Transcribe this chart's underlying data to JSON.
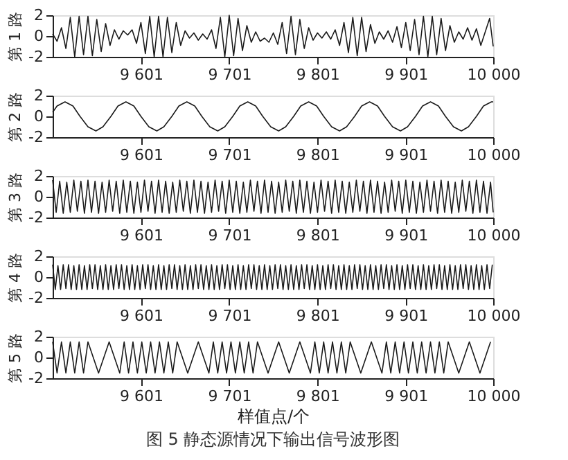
{
  "chart_data": [
    {
      "type": "line",
      "ylabel": "第 1 路",
      "color": "#1a1a1a",
      "xlim": [
        9501,
        10000
      ],
      "ylim": [
        -2,
        2
      ],
      "yticks": [
        -2,
        0,
        2
      ],
      "xticks": [
        {
          "value": 9601,
          "label": "9 601"
        },
        {
          "value": 9701,
          "label": "9 701"
        },
        {
          "value": 9801,
          "label": "9 801"
        },
        {
          "value": 9901,
          "label": "9 901"
        },
        {
          "value": 10000,
          "label": "10 000"
        }
      ],
      "x": [
        9501,
        9506,
        9511,
        9516,
        9521,
        9526,
        9531,
        9536,
        9541,
        9546,
        9551,
        9556,
        9561,
        9566,
        9571,
        9576,
        9581,
        9586,
        9591,
        9596,
        9601,
        9606,
        9611,
        9616,
        9621,
        9626,
        9631,
        9636,
        9641,
        9646,
        9651,
        9656,
        9661,
        9666,
        9671,
        9676,
        9681,
        9686,
        9691,
        9696,
        9701,
        9706,
        9711,
        9716,
        9721,
        9726,
        9731,
        9736,
        9741,
        9746,
        9751,
        9756,
        9761,
        9766,
        9771,
        9776,
        9781,
        9786,
        9791,
        9796,
        9801,
        9806,
        9811,
        9816,
        9821,
        9826,
        9831,
        9836,
        9841,
        9846,
        9851,
        9856,
        9861,
        9866,
        9871,
        9876,
        9881,
        9886,
        9891,
        9896,
        9901,
        9906,
        9911,
        9916,
        9921,
        9926,
        9931,
        9936,
        9941,
        9946,
        9951,
        9956,
        9961,
        9966,
        9971,
        9976,
        9981,
        9986,
        9991,
        9996,
        10000
      ],
      "values": [
        0.2,
        -0.5,
        0.8,
        -1.2,
        1.8,
        -2.0,
        1.9,
        -1.8,
        1.9,
        -1.9,
        1.6,
        -1.5,
        1.2,
        -0.9,
        0.6,
        -0.3,
        0.5,
        0.1,
        0.6,
        -0.7,
        1.3,
        -1.7,
        1.9,
        -2.0,
        1.9,
        -2.0,
        1.8,
        -1.6,
        1.3,
        -0.9,
        0.5,
        -0.2,
        0.3,
        -0.4,
        0.2,
        -0.3,
        0.6,
        -1.2,
        1.8,
        -2.0,
        2.0,
        -1.9,
        1.7,
        -1.4,
        1.0,
        -0.6,
        0.4,
        -0.5,
        -0.2,
        -0.6,
        0.3,
        -0.8,
        1.3,
        -1.7,
        1.9,
        -1.8,
        1.6,
        -1.2,
        0.8,
        -0.4,
        0.3,
        -0.2,
        0.4,
        -0.3,
        0.6,
        -0.9,
        1.3,
        -1.6,
        1.8,
        -1.9,
        1.8,
        -1.5,
        1.1,
        -0.7,
        0.4,
        -0.3,
        0.5,
        -0.6,
        0.9,
        -1.1,
        1.3,
        -1.4,
        1.6,
        -1.8,
        1.9,
        -2.0,
        1.9,
        -1.8,
        1.7,
        -1.4,
        1.0,
        -0.6,
        0.4,
        -0.3,
        0.8,
        -0.4,
        0.7,
        -0.9,
        0.4,
        1.7,
        -1.0
      ]
    },
    {
      "type": "line",
      "ylabel": "第 2 路",
      "color": "#1a1a1a",
      "xlim": [
        9501,
        10000
      ],
      "ylim": [
        -2,
        2
      ],
      "yticks": [
        -2,
        0,
        2
      ],
      "xticks": [
        {
          "value": 9601,
          "label": "9 601"
        },
        {
          "value": 9701,
          "label": "9 701"
        },
        {
          "value": 9801,
          "label": "9 801"
        },
        {
          "value": 9901,
          "label": "9 901"
        },
        {
          "value": 10000,
          "label": "10 000"
        }
      ],
      "x": [
        9501,
        9506,
        9515,
        9524,
        9532,
        9541,
        9550,
        9558,
        9567,
        9575,
        9584,
        9593,
        9601,
        9610,
        9619,
        9627,
        9636,
        9644,
        9653,
        9662,
        9670,
        9679,
        9688,
        9696,
        9705,
        9713,
        9722,
        9731,
        9739,
        9748,
        9757,
        9765,
        9774,
        9782,
        9791,
        9800,
        9808,
        9817,
        9826,
        9834,
        9843,
        9851,
        9860,
        9869,
        9877,
        9886,
        9895,
        9903,
        9912,
        9920,
        9929,
        9938,
        9946,
        9955,
        9964,
        9972,
        9981,
        9989,
        9998,
        10000
      ],
      "values": [
        0.4,
        1.0,
        1.4,
        1.0,
        0,
        -1.0,
        -1.4,
        -1.0,
        0,
        1.0,
        1.4,
        1.0,
        0,
        -1.0,
        -1.4,
        -1.0,
        0,
        1.0,
        1.4,
        1.0,
        0,
        -1.0,
        -1.4,
        -1.0,
        0,
        1.0,
        1.4,
        1.0,
        0,
        -1.0,
        -1.4,
        -1.0,
        0,
        1.0,
        1.4,
        1.0,
        0,
        -1.0,
        -1.4,
        -1.0,
        0,
        1.0,
        1.4,
        1.0,
        0,
        -1.0,
        -1.4,
        -1.0,
        0,
        1.0,
        1.4,
        1.0,
        0,
        -1.0,
        -1.4,
        -1.0,
        0,
        1.0,
        1.4,
        1.4
      ]
    },
    {
      "type": "line",
      "ylabel": "第 3 路",
      "color": "#1a1a1a",
      "xlim": [
        9501,
        10000
      ],
      "ylim": [
        -2,
        2
      ],
      "yticks": [
        -2,
        0,
        2
      ],
      "xticks": [
        {
          "value": 9601,
          "label": "9 601"
        },
        {
          "value": 9701,
          "label": "9 701"
        },
        {
          "value": 9801,
          "label": "9 801"
        },
        {
          "value": 9901,
          "label": "9 901"
        },
        {
          "value": 10000,
          "label": "10 000"
        }
      ],
      "x": [
        9501,
        9505,
        9509,
        9513,
        9517,
        9521,
        9525,
        9529,
        9533,
        9537,
        9541,
        9545,
        9549,
        9553,
        9557,
        9561,
        9565,
        9569,
        9573,
        9577,
        9581,
        9585,
        9589,
        9593,
        9597,
        9601,
        9605,
        9609,
        9613,
        9617,
        9621,
        9625,
        9629,
        9633,
        9637,
        9641,
        9645,
        9649,
        9653,
        9657,
        9661,
        9665,
        9669,
        9673,
        9677,
        9681,
        9685,
        9689,
        9693,
        9697,
        9701,
        9705,
        9709,
        9713,
        9717,
        9721,
        9725,
        9729,
        9733,
        9737,
        9741,
        9745,
        9749,
        9753,
        9757,
        9761,
        9765,
        9769,
        9773,
        9777,
        9781,
        9785,
        9789,
        9793,
        9797,
        9801,
        9805,
        9809,
        9813,
        9817,
        9821,
        9825,
        9829,
        9833,
        9837,
        9841,
        9845,
        9849,
        9853,
        9857,
        9861,
        9865,
        9869,
        9873,
        9877,
        9881,
        9885,
        9889,
        9893,
        9897,
        9901,
        9905,
        9909,
        9913,
        9917,
        9921,
        9925,
        9929,
        9933,
        9937,
        9941,
        9945,
        9949,
        9953,
        9957,
        9961,
        9965,
        9969,
        9973,
        9977,
        9981,
        9985,
        9989,
        9993,
        9997,
        10000
      ],
      "values": [
        1.6,
        -1.5,
        1.5,
        -1.6,
        1.4,
        -1.5,
        1.6,
        -1.4,
        1.5,
        -1.6,
        1.6,
        -1.5,
        1.5,
        -1.6,
        1.4,
        -1.5,
        1.6,
        -1.4,
        1.5,
        -1.6,
        1.6,
        -1.5,
        1.5,
        -1.6,
        1.4,
        -1.5,
        1.6,
        -1.4,
        1.5,
        -1.6,
        1.6,
        -1.5,
        1.5,
        -1.6,
        1.4,
        -1.5,
        1.6,
        -1.4,
        1.5,
        -1.6,
        1.6,
        -1.5,
        1.5,
        -1.6,
        1.4,
        -1.5,
        1.6,
        -1.4,
        1.5,
        -1.6,
        1.6,
        -1.5,
        1.5,
        -1.6,
        1.4,
        -1.5,
        1.6,
        -1.4,
        1.5,
        -1.6,
        1.6,
        -1.5,
        1.5,
        -1.6,
        1.4,
        -1.5,
        1.6,
        -1.4,
        1.5,
        -1.6,
        1.6,
        -1.5,
        1.5,
        -1.6,
        1.4,
        -1.5,
        1.6,
        -1.4,
        1.5,
        -1.6,
        1.6,
        -1.5,
        1.5,
        -1.6,
        1.4,
        -1.5,
        1.6,
        -1.4,
        1.5,
        -1.6,
        1.6,
        -1.5,
        1.5,
        -1.6,
        1.4,
        -1.5,
        1.6,
        -1.4,
        1.5,
        -1.6,
        1.6,
        -1.5,
        1.5,
        -1.6,
        1.4,
        -1.5,
        1.6,
        -1.4,
        1.5,
        -1.6,
        1.6,
        -1.5,
        1.5,
        -1.6,
        1.4,
        -1.5,
        1.6,
        -1.4,
        1.5,
        -1.6,
        1.6,
        -1.5,
        1.5,
        -1.6,
        1.4,
        -1.5
      ]
    },
    {
      "type": "line",
      "ylabel": "第 4 路",
      "color": "#1a1a1a",
      "xlim": [
        9501,
        10000
      ],
      "ylim": [
        -2,
        2
      ],
      "yticks": [
        -2,
        0,
        2
      ],
      "xticks": [
        {
          "value": 9601,
          "label": "9 601"
        },
        {
          "value": 9701,
          "label": "9 701"
        },
        {
          "value": 9801,
          "label": "9 801"
        },
        {
          "value": 9901,
          "label": "9 901"
        },
        {
          "value": 10000,
          "label": "10 000"
        }
      ],
      "x": [
        9501,
        9504,
        9507,
        9510,
        9513,
        9516,
        9519,
        9522,
        9525,
        9528,
        9531,
        9534,
        9537,
        9540,
        9543,
        9546,
        9549,
        9552,
        9555,
        9558,
        9561,
        9564,
        9567,
        9570,
        9573,
        9576,
        9579,
        9582,
        9585,
        9588,
        9591,
        9594,
        9597,
        9600,
        9603,
        9606,
        9609,
        9612,
        9615,
        9618,
        9621,
        9624,
        9627,
        9630,
        9633,
        9636,
        9639,
        9642,
        9645,
        9648,
        9651,
        9654,
        9657,
        9660,
        9663,
        9666,
        9669,
        9672,
        9675,
        9678,
        9681,
        9684,
        9687,
        9690,
        9693,
        9696,
        9699,
        9702,
        9705,
        9708,
        9711,
        9714,
        9717,
        9720,
        9723,
        9726,
        9729,
        9732,
        9735,
        9738,
        9741,
        9744,
        9747,
        9750,
        9753,
        9756,
        9759,
        9762,
        9765,
        9768,
        9771,
        9774,
        9777,
        9780,
        9783,
        9786,
        9789,
        9792,
        9795,
        9798,
        9801,
        9804,
        9807,
        9810,
        9813,
        9816,
        9819,
        9822,
        9825,
        9828,
        9831,
        9834,
        9837,
        9840,
        9843,
        9846,
        9849,
        9852,
        9855,
        9858,
        9861,
        9864,
        9867,
        9870,
        9873,
        9876,
        9879,
        9882,
        9885,
        9888,
        9891,
        9894,
        9897,
        9900,
        9903,
        9906,
        9909,
        9912,
        9915,
        9918,
        9921,
        9924,
        9927,
        9930,
        9933,
        9936,
        9939,
        9942,
        9945,
        9948,
        9951,
        9954,
        9957,
        9960,
        9963,
        9966,
        9969,
        9972,
        9975,
        9978,
        9981,
        9984,
        9987,
        9990,
        9993,
        9996,
        9999
      ],
      "values": [
        1.2,
        -1.2,
        1.1,
        -1.2,
        1.2,
        -1.1,
        1.2,
        -1.2,
        1.1,
        -1.2,
        1.2,
        -1.2,
        1.1,
        -1.2,
        1.2,
        -1.1,
        1.2,
        -1.2,
        1.1,
        -1.2,
        1.2,
        -1.2,
        1.1,
        -1.2,
        1.2,
        -1.1,
        1.2,
        -1.2,
        1.1,
        -1.2,
        1.2,
        -1.2,
        1.1,
        -1.2,
        1.2,
        -1.1,
        1.2,
        -1.2,
        1.1,
        -1.2,
        1.2,
        -1.2,
        1.1,
        -1.2,
        1.2,
        -1.1,
        1.2,
        -1.2,
        1.1,
        -1.2,
        1.2,
        -1.2,
        1.1,
        -1.2,
        1.2,
        -1.1,
        1.2,
        -1.2,
        1.1,
        -1.2,
        1.2,
        -1.2,
        1.1,
        -1.2,
        1.2,
        -1.1,
        1.2,
        -1.2,
        1.1,
        -1.2,
        1.2,
        -1.2,
        1.1,
        -1.2,
        1.2,
        -1.1,
        1.2,
        -1.2,
        1.1,
        -1.2,
        1.2,
        -1.2,
        1.1,
        -1.2,
        1.2,
        -1.1,
        1.2,
        -1.2,
        1.1,
        -1.2,
        1.2,
        -1.2,
        1.1,
        -1.2,
        1.2,
        -1.1,
        1.2,
        -1.2,
        1.1,
        -1.2,
        1.2,
        -1.2,
        1.1,
        -1.2,
        1.2,
        -1.1,
        1.2,
        -1.2,
        1.1,
        -1.2,
        1.2,
        -1.2,
        1.1,
        -1.2,
        1.2,
        -1.1,
        1.2,
        -1.2,
        1.1,
        -1.2,
        1.2,
        -1.2,
        1.1,
        -1.2,
        1.2,
        -1.1,
        1.2,
        -1.2,
        1.1,
        -1.2,
        1.2,
        -1.2,
        1.1,
        -1.2,
        1.2,
        -1.1,
        1.2,
        -1.2,
        1.1,
        -1.2,
        1.2,
        -1.2,
        1.1,
        -1.2,
        1.2,
        -1.1,
        1.2,
        -1.2,
        1.1,
        -1.2,
        1.2,
        -1.2,
        1.1,
        -1.2,
        1.2,
        -1.1,
        1.2,
        -1.2,
        1.1,
        -1.2,
        1.2,
        -1.2,
        1.1,
        -1.2,
        1.2,
        -1.1,
        1.2
      ]
    },
    {
      "type": "line",
      "ylabel": "第 5 路",
      "xlabel": "样值点/个",
      "annotations": [
        "图 5  静态源情况下输出信号波形图"
      ],
      "color": "#1a1a1a",
      "xlim": [
        9501,
        10000
      ],
      "ylim": [
        -2,
        2
      ],
      "yticks": [
        -2,
        0,
        2
      ],
      "xticks": [
        {
          "value": 9601,
          "label": "9 601"
        },
        {
          "value": 9701,
          "label": "9 701"
        },
        {
          "value": 9801,
          "label": "9 801"
        },
        {
          "value": 9901,
          "label": "9 901"
        },
        {
          "value": 10000,
          "label": "10 000"
        }
      ],
      "x": [
        9501,
        9506,
        9511,
        9516,
        9521,
        9526,
        9531,
        9536,
        9541,
        9553,
        9565,
        9577,
        9582,
        9587,
        9592,
        9597,
        9602,
        9607,
        9612,
        9617,
        9622,
        9627,
        9632,
        9637,
        9642,
        9654,
        9666,
        9678,
        9683,
        9688,
        9693,
        9698,
        9703,
        9708,
        9713,
        9718,
        9723,
        9728,
        9733,
        9745,
        9757,
        9769,
        9781,
        9793,
        9798,
        9803,
        9808,
        9813,
        9818,
        9823,
        9828,
        9833,
        9838,
        9850,
        9862,
        9874,
        9879,
        9884,
        9889,
        9894,
        9899,
        9904,
        9909,
        9914,
        9919,
        9924,
        9929,
        9934,
        9939,
        9944,
        9949,
        9961,
        9973,
        9985,
        9997
      ],
      "values": [
        1.5,
        -1.5,
        1.5,
        -1.5,
        1.5,
        -1.5,
        1.5,
        -1.5,
        1.5,
        -1.5,
        1.5,
        -1.5,
        1.5,
        -1.5,
        1.5,
        -1.5,
        1.5,
        -1.5,
        1.5,
        -1.5,
        1.5,
        -1.5,
        1.5,
        -1.5,
        1.5,
        -1.5,
        1.5,
        -1.5,
        1.5,
        -1.5,
        1.5,
        -1.5,
        1.5,
        -1.5,
        1.5,
        -1.5,
        1.5,
        -1.5,
        1.5,
        -1.5,
        1.5,
        -1.5,
        1.5,
        -1.5,
        1.5,
        -1.5,
        1.5,
        -1.5,
        1.5,
        -1.5,
        1.5,
        -1.5,
        1.5,
        -1.5,
        1.5,
        -1.5,
        1.5,
        -1.5,
        1.5,
        -1.5,
        1.5,
        -1.5,
        1.5,
        -1.5,
        1.5,
        -1.5,
        1.5,
        -1.5,
        1.5,
        -1.5,
        1.5,
        -1.5,
        1.5,
        -1.5,
        1.5
      ]
    }
  ]
}
